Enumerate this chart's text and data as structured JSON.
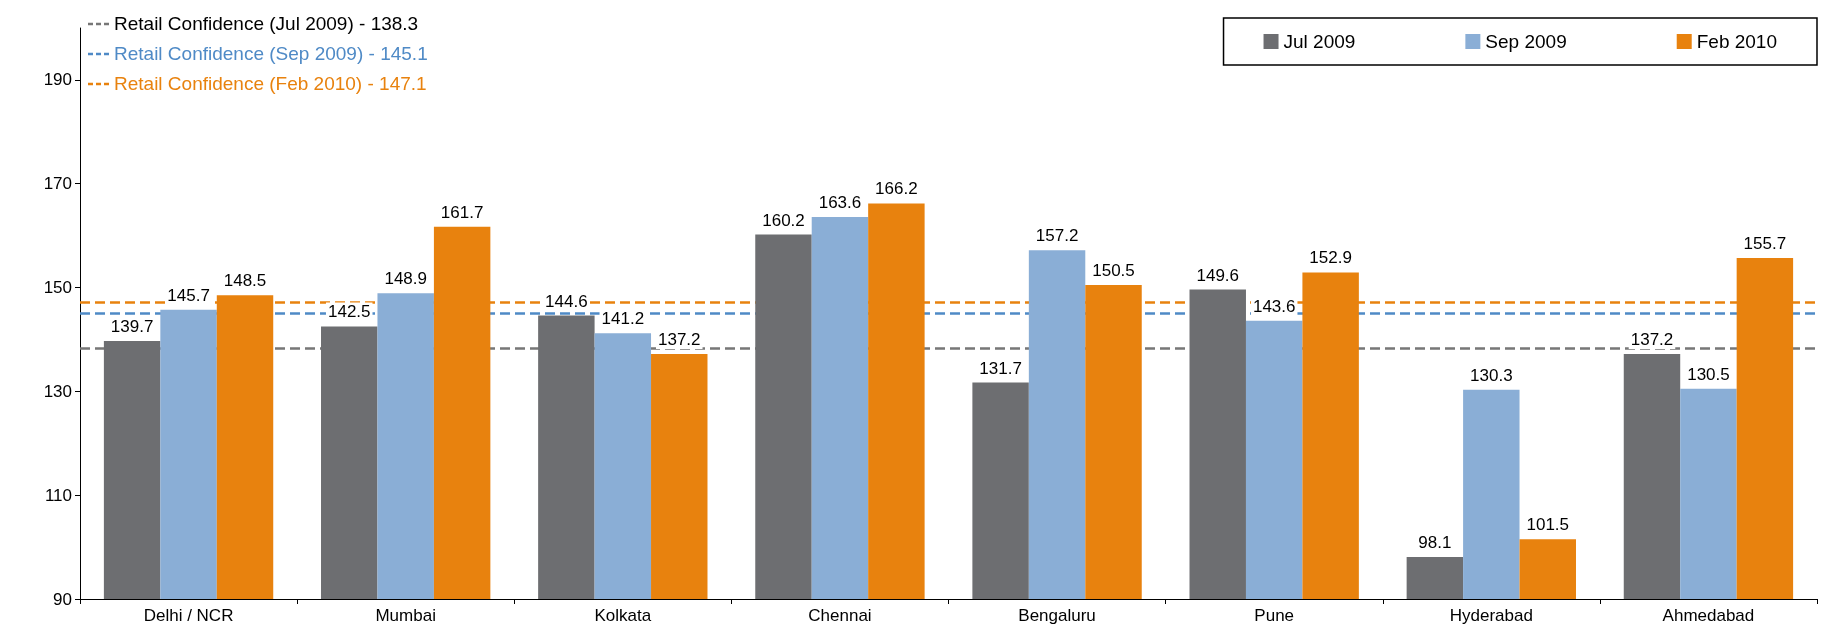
{
  "chart_data": {
    "type": "bar",
    "categories": [
      "Delhi / NCR",
      "Mumbai",
      "Kolkata",
      "Chennai",
      "Bengaluru",
      "Pune",
      "Hyderabad",
      "Ahmedabad"
    ],
    "series": [
      {
        "name": "Jul 2009",
        "color": "#6d6e71",
        "values": [
          139.7,
          142.5,
          144.6,
          160.2,
          131.7,
          149.6,
          98.1,
          137.2
        ]
      },
      {
        "name": "Sep 2009",
        "color": "#8aaed6",
        "values": [
          145.7,
          148.9,
          141.2,
          163.6,
          157.2,
          143.6,
          130.3,
          130.5
        ]
      },
      {
        "name": "Feb 2010",
        "color": "#e8820e",
        "values": [
          148.5,
          161.7,
          137.2,
          166.2,
          150.5,
          152.9,
          101.5,
          155.7
        ]
      }
    ],
    "ylim": [
      90,
      200
    ],
    "yticks": [
      90,
      110,
      130,
      150,
      170,
      190
    ],
    "grid": false,
    "legend": "top right",
    "data_labels": true,
    "ref_lines": [
      {
        "axis": "y",
        "value": 138.3,
        "label": "Retail Confidence (Jul 2009) - 138.3",
        "color": "#777777",
        "line_style": "dashed"
      },
      {
        "axis": "y",
        "value": 145.1,
        "label": "Retail Confidence (Sep 2009) - 145.1",
        "color": "#4f8ac6",
        "line_style": "dashed"
      },
      {
        "axis": "y",
        "value": 147.1,
        "label": "Retail Confidence (Feb 2010) - 147.1",
        "color": "#e8820e",
        "line_style": "dashed"
      }
    ]
  }
}
